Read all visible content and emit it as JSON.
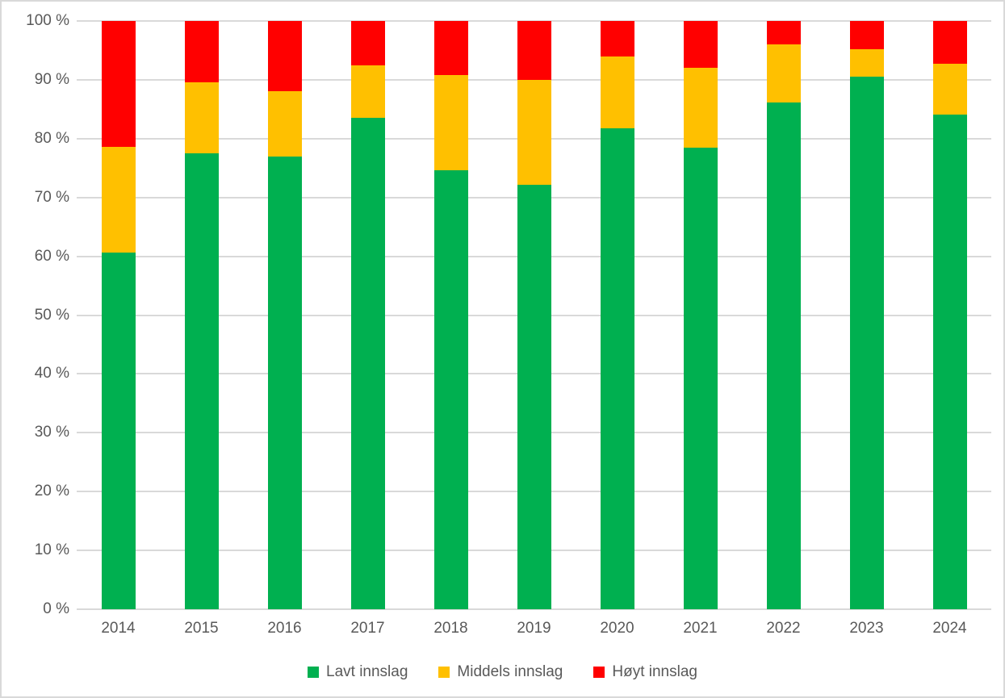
{
  "chart": {
    "background": "#FFFFFF",
    "border_color": "#D9D9D9",
    "grid_color": "#D9D9D9",
    "axis_text_color": "#595959"
  },
  "chart_data": {
    "type": "bar",
    "stacked": true,
    "unit": "%",
    "title": "",
    "xlabel": "",
    "ylabel": "",
    "categories": [
      "2014",
      "2015",
      "2016",
      "2017",
      "2018",
      "2019",
      "2020",
      "2021",
      "2022",
      "2023",
      "2024"
    ],
    "series": [
      {
        "name": "Lavt innslag",
        "color": "#00B050",
        "values": [
          60.6,
          77.5,
          76.9,
          83.6,
          74.6,
          72.2,
          81.7,
          78.5,
          86.1,
          90.6,
          84.1
        ]
      },
      {
        "name": "Middels innslag",
        "color": "#FFC000",
        "values": [
          18.0,
          12.1,
          11.2,
          8.8,
          16.2,
          17.8,
          12.3,
          13.5,
          9.9,
          4.6,
          8.7
        ]
      },
      {
        "name": "Høyt innslag",
        "color": "#FF0000",
        "values": [
          21.4,
          10.4,
          11.9,
          7.6,
          9.2,
          10.0,
          6.0,
          8.0,
          4.0,
          4.8,
          7.2
        ]
      }
    ],
    "ylim": [
      0,
      100
    ],
    "y_tick_step": 10,
    "y_tick_labels": [
      "0 %",
      "10 %",
      "20 %",
      "30 %",
      "40 %",
      "50 %",
      "60 %",
      "70 %",
      "80 %",
      "90 %",
      "100 %"
    ],
    "grid": true,
    "legend_position": "bottom",
    "legend": [
      "Lavt innslag",
      "Middels innslag",
      "Høyt innslag"
    ]
  }
}
